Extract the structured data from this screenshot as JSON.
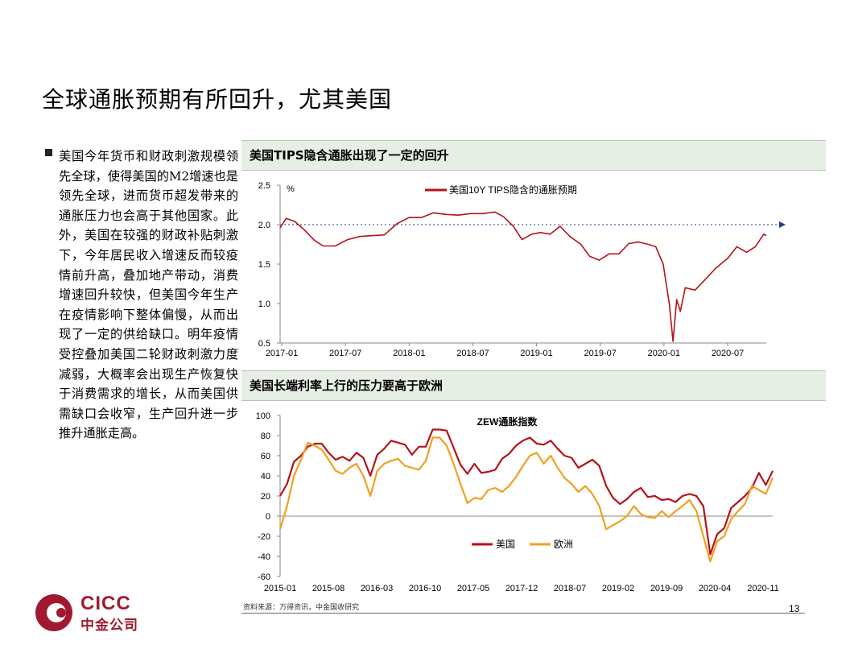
{
  "slide": {
    "title": "全球通胀预期有所回升，尤其美国",
    "bullet": "美国今年货币和财政刺激规模领先全球，使得美国的M2增速也是领先全球，进而货币超发带来的通胀压力也会高于其他国家。此外，美国在较强的财政补贴刺激下，今年居民收入增速反而较疫情前升高，叠加地产带动，消费增速回升较快，但美国今年生产在疫情影响下整体偏慢，从而出现了一定的供给缺口。明年疫情受控叠加美国二轮财政刺激力度减弱，大概率会出现生产恢复快于消费需求的增长，从而美国供需缺口会收窄，生产回升进一步推升通胀走高。",
    "source": "资料来源：万得资讯，中金国收研究",
    "page_number": "13",
    "logo": {
      "en": "CICC",
      "cn": "中金公司"
    }
  },
  "panels": [
    {
      "header": "美国TIPS隐含通胀出现了一定的回升"
    },
    {
      "header": "美国长端利率上行的压力要高于欧洲"
    }
  ],
  "chart_data": [
    {
      "type": "line",
      "unit_label": "%",
      "legend": [
        "美国10Y TIPS隐含的通胀预期"
      ],
      "x_tick_labels": [
        "2017-01",
        "2017-07",
        "2018-01",
        "2018-07",
        "2019-01",
        "2019-07",
        "2020-01",
        "2020-07"
      ],
      "x_range": [
        2017.0,
        2020.96
      ],
      "ylim": [
        0.5,
        2.5
      ],
      "y_ticks": [
        "0.5",
        "1.0",
        "1.5",
        "2.0",
        "2.5"
      ],
      "reference_line": 2.0,
      "series_color": "#b5121b",
      "series": [
        {
          "name": "美国10Y TIPS隐含的通胀预期",
          "x": [
            2017.0,
            2017.05,
            2017.12,
            2017.2,
            2017.28,
            2017.35,
            2017.45,
            2017.55,
            2017.65,
            2017.75,
            2017.85,
            2017.95,
            2018.05,
            2018.15,
            2018.25,
            2018.35,
            2018.45,
            2018.55,
            2018.65,
            2018.75,
            2018.82,
            2018.9,
            2018.97,
            2019.05,
            2019.12,
            2019.2,
            2019.28,
            2019.36,
            2019.45,
            2019.52,
            2019.6,
            2019.68,
            2019.76,
            2019.84,
            2019.92,
            2020.0,
            2020.06,
            2020.12,
            2020.17,
            2020.2,
            2020.23,
            2020.26,
            2020.3,
            2020.38,
            2020.46,
            2020.55,
            2020.65,
            2020.72,
            2020.8,
            2020.87,
            2020.94,
            2020.96
          ],
          "values": [
            1.96,
            2.08,
            2.04,
            1.93,
            1.8,
            1.73,
            1.73,
            1.81,
            1.85,
            1.86,
            1.87,
            2.01,
            2.09,
            2.09,
            2.15,
            2.13,
            2.12,
            2.14,
            2.14,
            2.16,
            2.1,
            1.98,
            1.81,
            1.88,
            1.9,
            1.88,
            1.98,
            1.85,
            1.75,
            1.6,
            1.55,
            1.63,
            1.63,
            1.76,
            1.78,
            1.75,
            1.72,
            1.5,
            1.0,
            0.52,
            1.05,
            0.9,
            1.2,
            1.17,
            1.3,
            1.45,
            1.58,
            1.72,
            1.65,
            1.72,
            1.88,
            1.86
          ]
        }
      ]
    },
    {
      "type": "line",
      "title": "ZEW通胀指数",
      "x_tick_labels": [
        "2015-01",
        "2015-08",
        "2016-03",
        "2016-10",
        "2017-05",
        "2017-12",
        "2018-07",
        "2019-02",
        "2019-09",
        "2020-04",
        "2020-11"
      ],
      "x_range": [
        0,
        71
      ],
      "ylim": [
        -60,
        100
      ],
      "y_ticks": [
        "100",
        "80",
        "60",
        "40",
        "20",
        "0",
        "-20",
        "-40",
        "-60"
      ],
      "legend": [
        "美国",
        "欧洲"
      ],
      "series": [
        {
          "name": "美国",
          "color": "#b5121b",
          "x": [
            0,
            1,
            2,
            3,
            4,
            5,
            6,
            7,
            8,
            9,
            10,
            11,
            12,
            13,
            14,
            15,
            16,
            17,
            18,
            19,
            20,
            21,
            22,
            23,
            24,
            25,
            26,
            27,
            28,
            29,
            30,
            31,
            32,
            33,
            34,
            35,
            36,
            37,
            38,
            39,
            40,
            41,
            42,
            43,
            44,
            45,
            46,
            47,
            48,
            49,
            50,
            51,
            52,
            53,
            54,
            55,
            56,
            57,
            58,
            59,
            60,
            61,
            62,
            63,
            64,
            65,
            66,
            67,
            68,
            69,
            70,
            71
          ],
          "values": [
            20,
            32,
            54,
            60,
            69,
            72,
            72,
            63,
            56,
            59,
            55,
            63,
            58,
            40,
            61,
            67,
            75,
            73,
            71,
            61,
            69,
            69,
            86,
            86,
            85,
            68,
            51,
            42,
            52,
            43,
            44,
            46,
            57,
            62,
            70,
            75,
            78,
            72,
            71,
            75,
            67,
            60,
            58,
            48,
            52,
            56,
            50,
            30,
            18,
            12,
            17,
            24,
            28,
            19,
            20,
            16,
            17,
            14,
            20,
            22,
            20,
            10,
            -38,
            -18,
            -12,
            8,
            14,
            20,
            28,
            43,
            31,
            45
          ]
        },
        {
          "name": "欧洲",
          "color": "#f0a020",
          "x": [
            0,
            1,
            2,
            3,
            4,
            5,
            6,
            7,
            8,
            9,
            10,
            11,
            12,
            13,
            14,
            15,
            16,
            17,
            18,
            19,
            20,
            21,
            22,
            23,
            24,
            25,
            26,
            27,
            28,
            29,
            30,
            31,
            32,
            33,
            34,
            35,
            36,
            37,
            38,
            39,
            40,
            41,
            42,
            43,
            44,
            45,
            46,
            47,
            48,
            49,
            50,
            51,
            52,
            53,
            54,
            55,
            56,
            57,
            58,
            59,
            60,
            61,
            62,
            63,
            64,
            65,
            66,
            67,
            68,
            69,
            70,
            71
          ],
          "values": [
            -13,
            10,
            40,
            56,
            73,
            70,
            66,
            56,
            45,
            42,
            48,
            52,
            40,
            20,
            45,
            52,
            55,
            57,
            50,
            48,
            46,
            55,
            78,
            78,
            70,
            52,
            32,
            13,
            18,
            17,
            26,
            28,
            24,
            30,
            39,
            50,
            60,
            63,
            52,
            60,
            48,
            38,
            32,
            24,
            30,
            22,
            10,
            -13,
            -9,
            -5,
            0,
            10,
            2,
            -1,
            -2,
            5,
            -1,
            5,
            10,
            16,
            5,
            -20,
            -45,
            -25,
            -20,
            -3,
            5,
            12,
            30,
            26,
            22,
            38
          ]
        }
      ]
    }
  ]
}
